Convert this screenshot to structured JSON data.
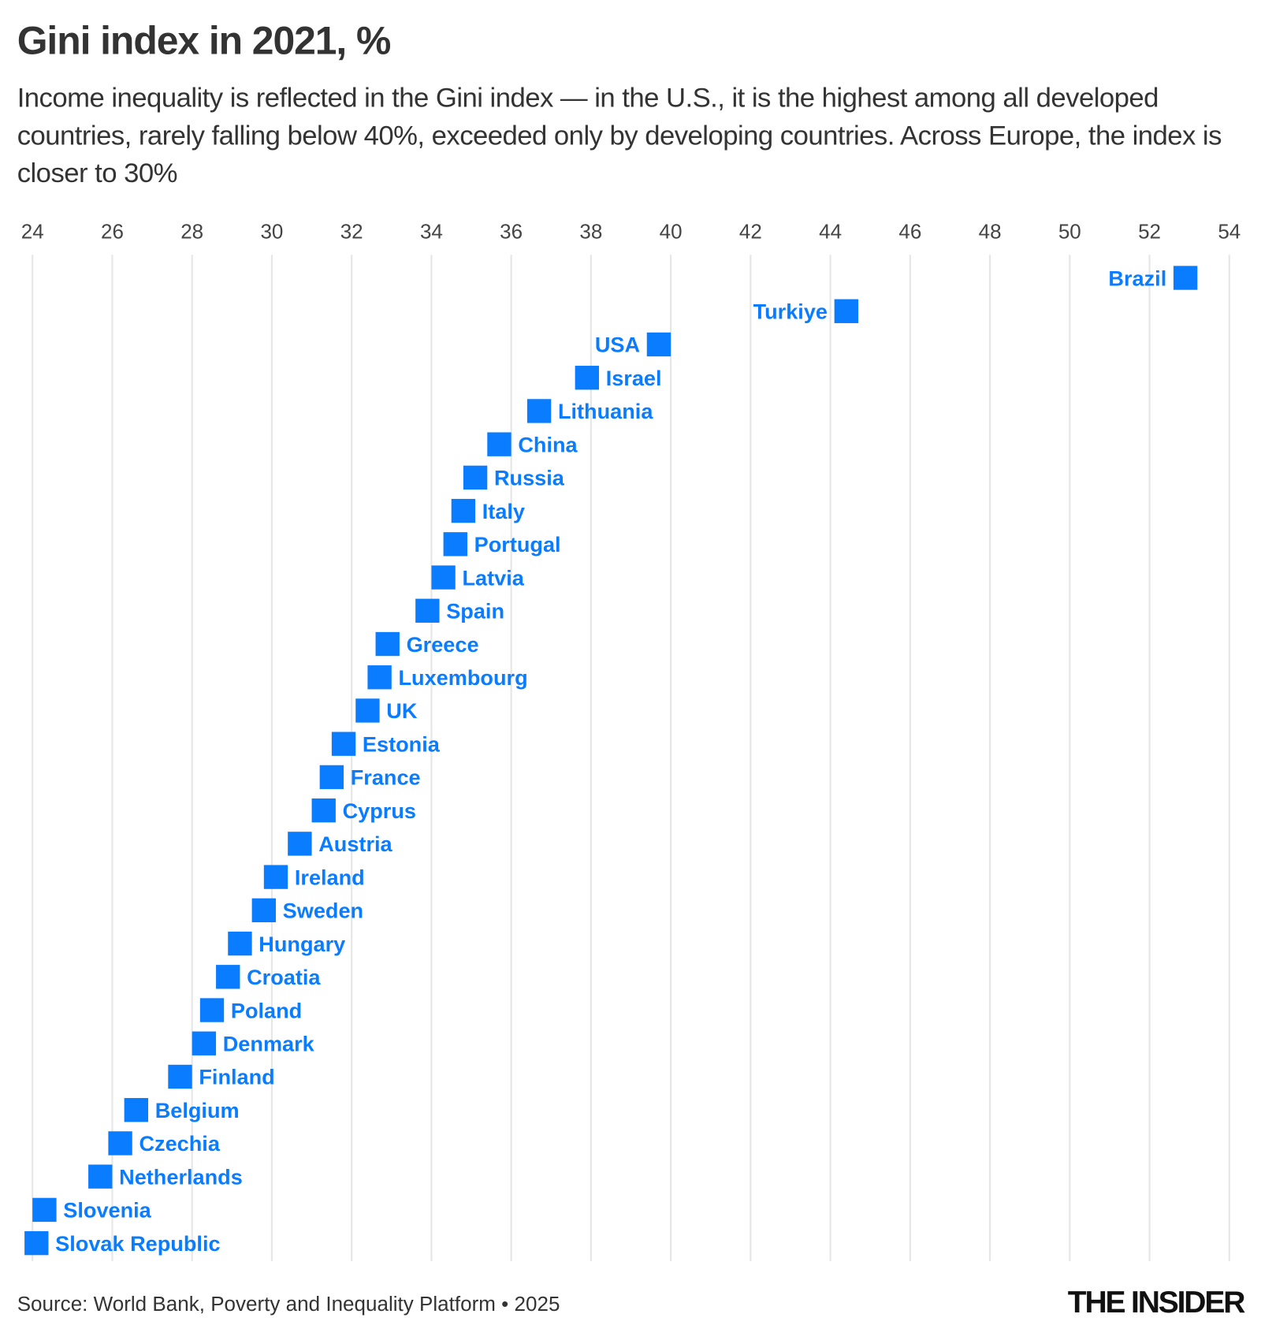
{
  "title": "Gini index in 2021, %",
  "subtitle": "Income inequality is reflected in the Gini index — in the U.S., it is the highest among all developed countries, rarely falling below 40%, exceeded only by developing countries. Across Europe, the index is closer to 30%",
  "source": "Source: World Bank, Poverty and Inequality Platform • 2025",
  "logo": "THE INSIDER",
  "colors": {
    "marker": "#0a7cff",
    "grid": "#e6e6e6",
    "text": "#333333"
  },
  "chart_data": {
    "type": "scatter",
    "title": "Gini index in 2021, %",
    "xlim": [
      24,
      54
    ],
    "xticks": [
      24,
      26,
      28,
      30,
      32,
      34,
      36,
      38,
      40,
      42,
      44,
      46,
      48,
      50,
      52,
      54
    ],
    "grid": true,
    "axis_position": "top",
    "points": [
      {
        "label": "Brazil",
        "value": 52.9
      },
      {
        "label": "Turkiye",
        "value": 44.4
      },
      {
        "label": "USA",
        "value": 39.7
      },
      {
        "label": "Israel",
        "value": 37.9
      },
      {
        "label": "Lithuania",
        "value": 36.7
      },
      {
        "label": "China",
        "value": 35.7
      },
      {
        "label": "Russia",
        "value": 35.1
      },
      {
        "label": "Italy",
        "value": 34.8
      },
      {
        "label": "Portugal",
        "value": 34.6
      },
      {
        "label": "Latvia",
        "value": 34.3
      },
      {
        "label": "Spain",
        "value": 33.9
      },
      {
        "label": "Greece",
        "value": 32.9
      },
      {
        "label": "Luxembourg",
        "value": 32.7
      },
      {
        "label": "UK",
        "value": 32.4
      },
      {
        "label": "Estonia",
        "value": 31.8
      },
      {
        "label": "France",
        "value": 31.5
      },
      {
        "label": "Cyprus",
        "value": 31.3
      },
      {
        "label": "Austria",
        "value": 30.7
      },
      {
        "label": "Ireland",
        "value": 30.1
      },
      {
        "label": "Sweden",
        "value": 29.8
      },
      {
        "label": "Hungary",
        "value": 29.2
      },
      {
        "label": "Croatia",
        "value": 28.9
      },
      {
        "label": "Poland",
        "value": 28.5
      },
      {
        "label": "Denmark",
        "value": 28.3
      },
      {
        "label": "Finland",
        "value": 27.7
      },
      {
        "label": "Belgium",
        "value": 26.6
      },
      {
        "label": "Czechia",
        "value": 26.2
      },
      {
        "label": "Netherlands",
        "value": 25.7
      },
      {
        "label": "Slovenia",
        "value": 24.3
      },
      {
        "label": "Slovak Republic",
        "value": 24.1
      }
    ]
  }
}
